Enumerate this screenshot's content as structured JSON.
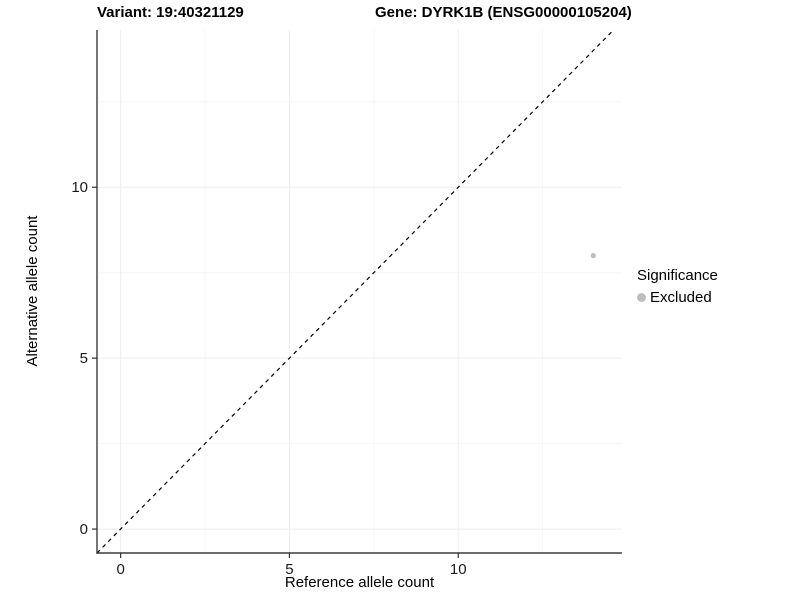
{
  "chart_data": {
    "type": "scatter",
    "title_left": "Variant: 19:40321129",
    "title_right": "Gene: DYRK1B (ENSG00000105204)",
    "xlabel": "Reference allele count",
    "ylabel": "Alternative allele count",
    "xlim": [
      -0.7,
      14.85
    ],
    "ylim": [
      -0.7,
      14.6
    ],
    "x_ticks": [
      {
        "value": 0,
        "label": "0"
      },
      {
        "value": 5,
        "label": "5"
      },
      {
        "value": 10,
        "label": "10"
      }
    ],
    "y_ticks": [
      {
        "value": 0,
        "label": "0"
      },
      {
        "value": 5,
        "label": "5"
      },
      {
        "value": 10,
        "label": "10"
      }
    ],
    "x_minor_ticks": [
      2.5,
      7.5,
      12.5
    ],
    "y_minor_ticks": [
      2.5,
      7.5,
      12.5
    ],
    "grid": "major and minor, light gray on white",
    "reference_line": {
      "kind": "identity",
      "equation": "y = x",
      "style": "dashed",
      "color": "#000000"
    },
    "series": [
      {
        "name": "Excluded",
        "color": "#bebebe",
        "points": [
          {
            "x": 14,
            "y": 8
          }
        ]
      }
    ],
    "legend": {
      "title": "Significance",
      "position": "right",
      "entries": [
        {
          "label": "Excluded",
          "color": "#bebebe",
          "marker": "circle"
        }
      ]
    }
  },
  "colors": {
    "background": "#ffffff",
    "grid_major": "#ededed",
    "grid_minor": "#f6f6f6",
    "axis_line": "#3c3c3c",
    "tick_mark": "#333333",
    "tick_text": "#1a1a1a",
    "title_text": "#000000",
    "point": "#bebebe"
  }
}
